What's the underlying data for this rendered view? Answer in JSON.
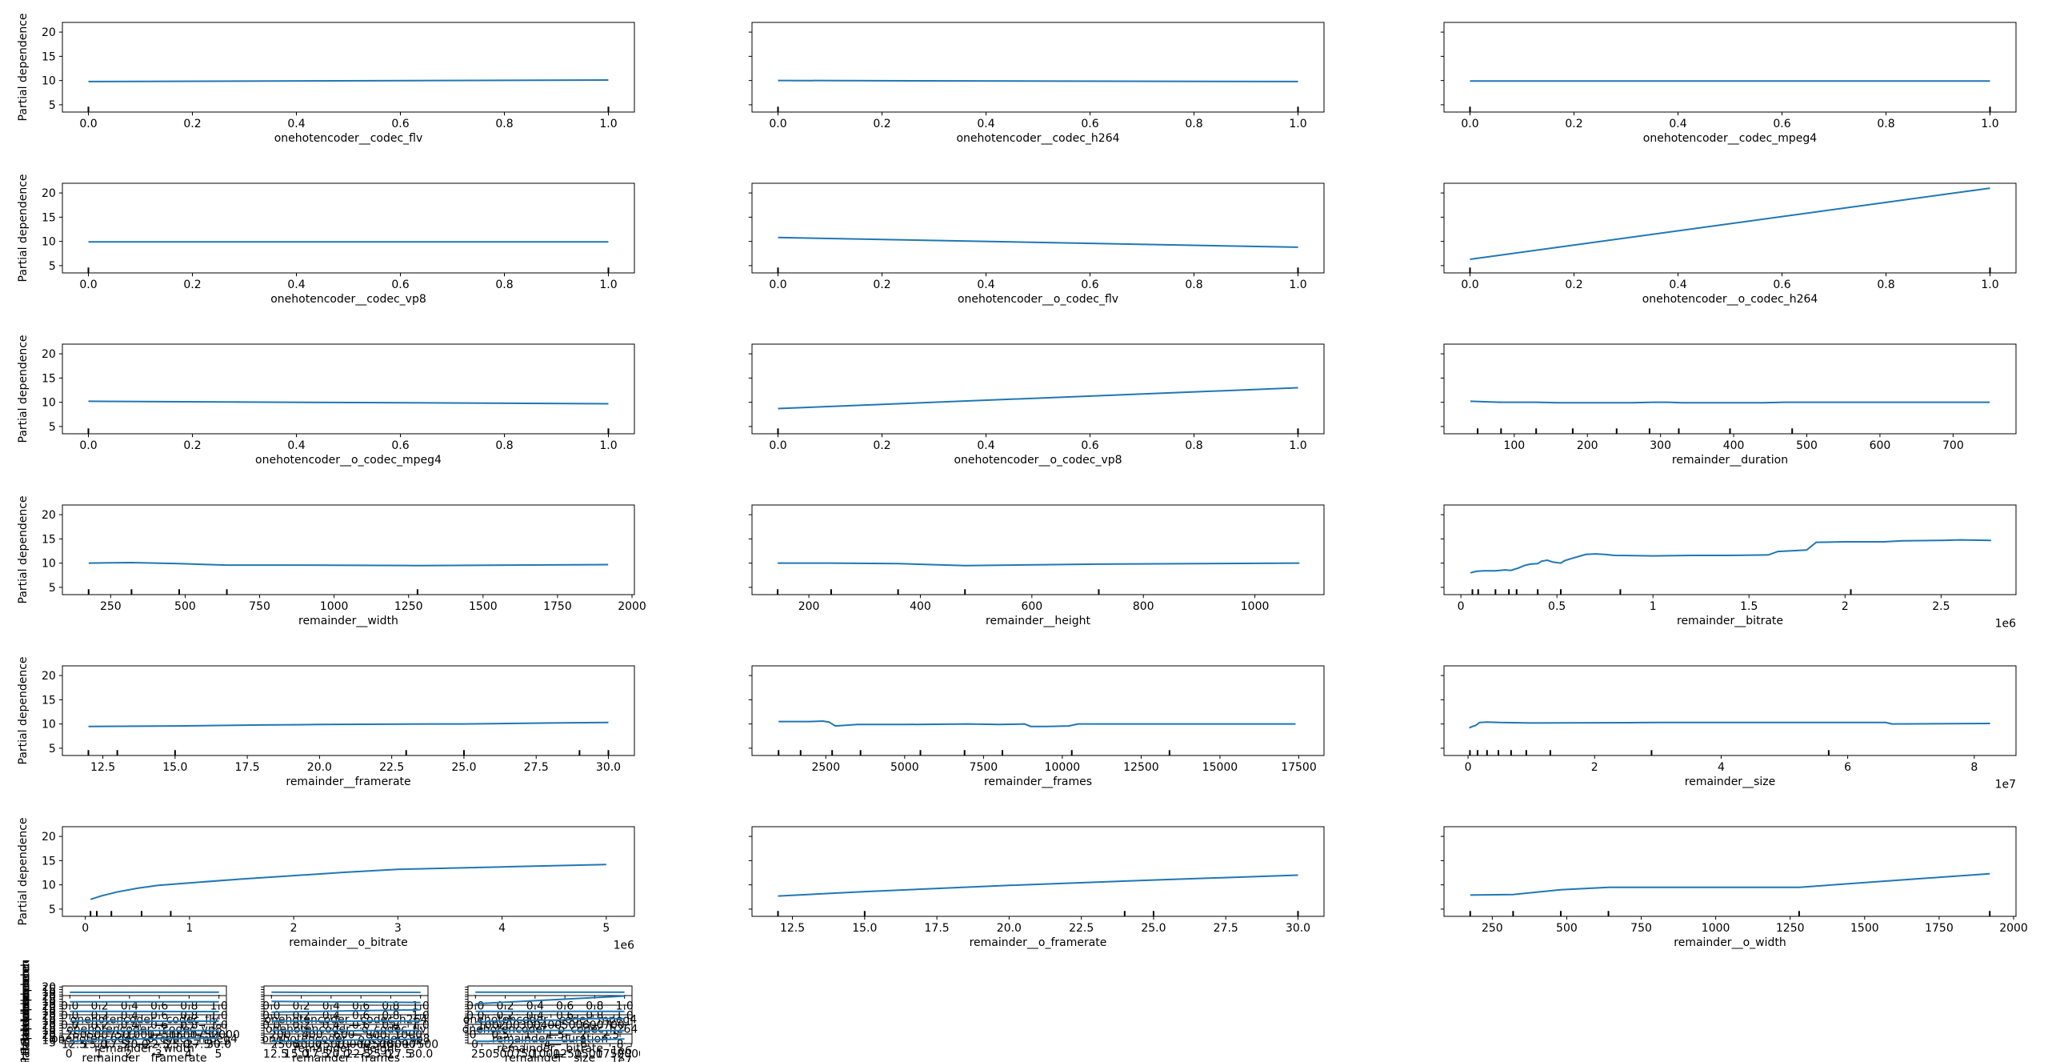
{
  "figure": {
    "ylabel": "Partial dependence",
    "ylim": [
      3.5,
      22
    ],
    "yticks": [
      5,
      10,
      15,
      20
    ]
  },
  "chart_data": [
    {
      "type": "line",
      "xlabel": "onehotencoder__codec_flv",
      "xlim": [
        -0.05,
        1.05
      ],
      "xticks": [
        0.0,
        0.2,
        0.4,
        0.6,
        0.8,
        1.0
      ],
      "tick_format": "1dp",
      "offset_label": "",
      "x": [
        0.0,
        1.0
      ],
      "y": [
        9.8,
        10.1
      ],
      "deciles": [
        0.0,
        1.0
      ]
    },
    {
      "type": "line",
      "xlabel": "onehotencoder__codec_h264",
      "xlim": [
        -0.05,
        1.05
      ],
      "xticks": [
        0.0,
        0.2,
        0.4,
        0.6,
        0.8,
        1.0
      ],
      "tick_format": "1dp",
      "offset_label": "",
      "x": [
        0.0,
        1.0
      ],
      "y": [
        10.0,
        9.8
      ],
      "deciles": [
        0.0,
        1.0
      ]
    },
    {
      "type": "line",
      "xlabel": "onehotencoder__codec_mpeg4",
      "xlim": [
        -0.05,
        1.05
      ],
      "xticks": [
        0.0,
        0.2,
        0.4,
        0.6,
        0.8,
        1.0
      ],
      "tick_format": "1dp",
      "offset_label": "",
      "x": [
        0.0,
        1.0
      ],
      "y": [
        9.9,
        9.9
      ],
      "deciles": [
        0.0,
        1.0
      ]
    },
    {
      "type": "line",
      "xlabel": "onehotencoder__codec_vp8",
      "xlim": [
        -0.05,
        1.05
      ],
      "xticks": [
        0.0,
        0.2,
        0.4,
        0.6,
        0.8,
        1.0
      ],
      "tick_format": "1dp",
      "offset_label": "",
      "x": [
        0.0,
        1.0
      ],
      "y": [
        9.9,
        9.9
      ],
      "deciles": [
        0.0,
        1.0
      ]
    },
    {
      "type": "line",
      "xlabel": "onehotencoder__o_codec_flv",
      "xlim": [
        -0.05,
        1.05
      ],
      "xticks": [
        0.0,
        0.2,
        0.4,
        0.6,
        0.8,
        1.0
      ],
      "tick_format": "1dp",
      "offset_label": "",
      "x": [
        0.0,
        1.0
      ],
      "y": [
        10.8,
        8.8
      ],
      "deciles": [
        0.0,
        1.0
      ]
    },
    {
      "type": "line",
      "xlabel": "onehotencoder__o_codec_h264",
      "xlim": [
        -0.05,
        1.05
      ],
      "xticks": [
        0.0,
        0.2,
        0.4,
        0.6,
        0.8,
        1.0
      ],
      "tick_format": "1dp",
      "offset_label": "",
      "x": [
        0.0,
        1.0
      ],
      "y": [
        6.3,
        21.0
      ],
      "deciles": [
        0.0,
        1.0
      ]
    },
    {
      "type": "line",
      "xlabel": "onehotencoder__o_codec_mpeg4",
      "xlim": [
        -0.05,
        1.05
      ],
      "xticks": [
        0.0,
        0.2,
        0.4,
        0.6,
        0.8,
        1.0
      ],
      "tick_format": "1dp",
      "offset_label": "",
      "x": [
        0.0,
        1.0
      ],
      "y": [
        10.2,
        9.7
      ],
      "deciles": [
        0.0,
        1.0
      ]
    },
    {
      "type": "line",
      "xlabel": "onehotencoder__o_codec_vp8",
      "xlim": [
        -0.05,
        1.05
      ],
      "xticks": [
        0.0,
        0.2,
        0.4,
        0.6,
        0.8,
        1.0
      ],
      "tick_format": "1dp",
      "offset_label": "",
      "x": [
        0.0,
        1.0
      ],
      "y": [
        8.7,
        13.0
      ],
      "deciles": [
        0.0,
        1.0
      ]
    },
    {
      "type": "line",
      "xlabel": "remainder__duration",
      "xlim": [
        4,
        786
      ],
      "xticks": [
        100,
        200,
        300,
        400,
        500,
        600,
        700
      ],
      "tick_format": "int",
      "offset_label": "",
      "x": [
        40,
        60,
        80,
        100,
        130,
        160,
        200,
        260,
        290,
        310,
        330,
        360,
        400,
        440,
        470,
        480,
        520,
        600,
        700,
        750
      ],
      "y": [
        10.2,
        10.1,
        10.0,
        10.0,
        10.0,
        9.9,
        9.9,
        9.9,
        10.0,
        10.0,
        9.9,
        9.9,
        9.9,
        9.9,
        10.0,
        10.0,
        10.0,
        10.0,
        10.0,
        10.0
      ],
      "deciles": [
        50,
        82,
        130,
        180,
        240,
        285,
        325,
        395,
        480
      ]
    },
    {
      "type": "line",
      "xlabel": "remainder__width",
      "xlim": [
        88,
        2008
      ],
      "xticks": [
        250,
        500,
        750,
        1000,
        1250,
        1500,
        1750,
        2000
      ],
      "tick_format": "int",
      "offset_label": "",
      "x": [
        176,
        320,
        480,
        640,
        900,
        1280,
        1600,
        1920
      ],
      "y": [
        10.0,
        10.1,
        9.9,
        9.6,
        9.6,
        9.5,
        9.6,
        9.7
      ],
      "deciles": [
        176,
        320,
        480,
        640,
        1280
      ]
    },
    {
      "type": "line",
      "xlabel": "remainder__height",
      "xlim": [
        98,
        1124
      ],
      "xticks": [
        200,
        400,
        600,
        800,
        1000
      ],
      "tick_format": "int",
      "offset_label": "",
      "x": [
        144,
        240,
        360,
        480,
        720,
        1080
      ],
      "y": [
        10.0,
        10.0,
        9.9,
        9.5,
        9.8,
        10.0
      ],
      "deciles": [
        144,
        240,
        360,
        480,
        720
      ]
    },
    {
      "type": "line",
      "xlabel": "remainder__bitrate",
      "xlim": [
        -88000,
        2890000
      ],
      "xticks": [
        0,
        500000,
        1000000,
        1500000,
        2000000,
        2500000
      ],
      "tick_format": "e6",
      "offset_label": "1e6",
      "x": [
        50000,
        80000,
        120000,
        180000,
        230000,
        260000,
        300000,
        330000,
        360000,
        400000,
        420000,
        450000,
        480000,
        520000,
        540000,
        580000,
        650000,
        700000,
        750000,
        800000,
        1000000,
        1200000,
        1400000,
        1600000,
        1650000,
        1800000,
        1850000,
        2000000,
        2200000,
        2300000,
        2500000,
        2600000,
        2760000
      ],
      "y": [
        8.0,
        8.3,
        8.4,
        8.4,
        8.6,
        8.5,
        9.0,
        9.5,
        9.8,
        9.9,
        10.4,
        10.6,
        10.2,
        10.0,
        10.5,
        11.0,
        11.8,
        11.9,
        11.8,
        11.6,
        11.5,
        11.6,
        11.6,
        11.7,
        12.4,
        12.7,
        14.3,
        14.4,
        14.4,
        14.6,
        14.7,
        14.8,
        14.7
      ],
      "deciles": [
        60000,
        90000,
        180000,
        250000,
        290000,
        400000,
        520000,
        830000,
        2030000
      ]
    },
    {
      "type": "line",
      "xlabel": "remainder__framerate",
      "xlim": [
        11.1,
        30.9
      ],
      "xticks": [
        12.5,
        15.0,
        17.5,
        20.0,
        22.5,
        25.0,
        27.5,
        30.0
      ],
      "tick_format": "1dp",
      "offset_label": "",
      "x": [
        12,
        15,
        16.5,
        18,
        20,
        24,
        25,
        28,
        30
      ],
      "y": [
        9.5,
        9.6,
        9.7,
        9.8,
        9.9,
        10.0,
        10.0,
        10.2,
        10.3
      ],
      "deciles": [
        12,
        13,
        15,
        23,
        25,
        29,
        30
      ]
    },
    {
      "type": "line",
      "xlabel": "remainder__frames",
      "xlim": [
        158,
        18300
      ],
      "xticks": [
        2500,
        5000,
        7500,
        10000,
        12500,
        15000,
        17500
      ],
      "tick_format": "int",
      "offset_label": "",
      "x": [
        1000,
        2000,
        2400,
        2600,
        2800,
        3500,
        5000,
        7000,
        8000,
        8800,
        9000,
        9500,
        10200,
        10500,
        12000,
        15000,
        17400
      ],
      "y": [
        10.5,
        10.5,
        10.6,
        10.4,
        9.6,
        9.9,
        9.9,
        10.0,
        9.9,
        10.0,
        9.5,
        9.5,
        9.6,
        10.0,
        10.0,
        10.0,
        10.0
      ],
      "deciles": [
        1000,
        1700,
        2700,
        3600,
        5500,
        6900,
        8100,
        10300,
        13400
      ]
    },
    {
      "type": "line",
      "xlabel": "remainder__size",
      "xlim": [
        -3800000,
        86600000
      ],
      "xticks": [
        0,
        20000000,
        40000000,
        60000000,
        80000000
      ],
      "tick_format": "e7",
      "offset_label": "1e7",
      "x": [
        200000,
        700000,
        1200000,
        1800000,
        3000000,
        5000000,
        10000000,
        30000000,
        60000000,
        66000000,
        67000000,
        82500000
      ],
      "y": [
        9.2,
        9.5,
        9.7,
        10.3,
        10.4,
        10.3,
        10.2,
        10.3,
        10.3,
        10.3,
        10.0,
        10.1
      ],
      "deciles": [
        300000,
        1500000,
        3000000,
        4800000,
        6800000,
        9200000,
        13000000,
        29000000,
        57000000
      ]
    },
    {
      "type": "line",
      "xlabel": "remainder__o_bitrate",
      "xlim": [
        -220000,
        5270000
      ],
      "xticks": [
        0,
        1000000,
        2000000,
        3000000,
        4000000,
        5000000
      ],
      "tick_format": "e6",
      "offset_label": "1e6",
      "x": [
        50000,
        150000,
        300000,
        500000,
        700000,
        1000000,
        1500000,
        2000000,
        2500000,
        3000000,
        4000000,
        5000000
      ],
      "y": [
        7.0,
        7.7,
        8.5,
        9.3,
        9.9,
        10.4,
        11.2,
        11.9,
        12.6,
        13.2,
        13.7,
        14.2
      ],
      "deciles": [
        50000,
        110000,
        250000,
        540000,
        820000
      ]
    },
    {
      "type": "line",
      "xlabel": "remainder__o_framerate",
      "xlim": [
        11.1,
        30.9
      ],
      "xticks": [
        12.5,
        15.0,
        17.5,
        20.0,
        22.5,
        25.0,
        27.5,
        30.0
      ],
      "tick_format": "1dp",
      "offset_label": "",
      "x": [
        12,
        15,
        20,
        25,
        30
      ],
      "y": [
        7.7,
        8.6,
        9.9,
        11.0,
        12.0
      ],
      "deciles": [
        12,
        15,
        24,
        25,
        30
      ]
    },
    {
      "type": "line",
      "xlabel": "remainder__o_width",
      "xlim": [
        88,
        2008
      ],
      "xticks": [
        250,
        500,
        750,
        1000,
        1250,
        1500,
        1750,
        2000
      ],
      "tick_format": "int",
      "offset_label": "",
      "x": [
        176,
        320,
        480,
        640,
        1280,
        1920
      ],
      "y": [
        7.9,
        8.0,
        9.0,
        9.5,
        9.5,
        12.3
      ],
      "deciles": [
        176,
        320,
        480,
        640,
        1280,
        1920
      ]
    }
  ]
}
